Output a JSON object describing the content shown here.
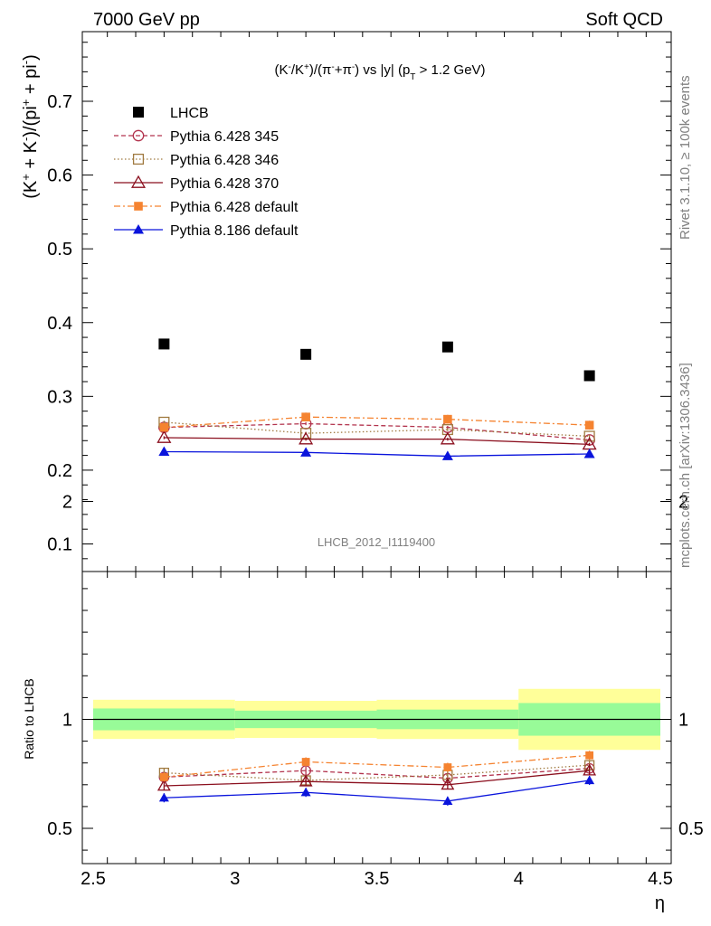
{
  "header": {
    "left": "7000 GeV pp",
    "right": "Soft QCD"
  },
  "side_labels": {
    "rivet": "Rivet 3.1.10, ≥ 100k events",
    "mcplots": "mcplots.cern.ch [arXiv:1306.3436]"
  },
  "watermark": "LHCB_2012_I1119400",
  "chart_data": [
    {
      "type": "scatter",
      "title": "(K⁻/K⁺)/(π⁻+π⁻) vs |y| (p_T > 1.2 GeV)",
      "ylabel": "(K⁺ + K⁻)/(pi⁺ + pi⁻)",
      "xlabel": "η",
      "xlim": [
        2.5,
        4.5
      ],
      "ylim": [
        0.05,
        0.8
      ],
      "legend_position": "top-left",
      "x_ticks": [
        "2.5",
        "3",
        "3.5",
        "4",
        "4.5"
      ],
      "y_ticks": [
        "0.1",
        "0.2",
        "0.3",
        "0.4",
        "0.5",
        "0.6",
        "0.7"
      ],
      "x": [
        2.75,
        3.25,
        3.75,
        4.25
      ],
      "series": [
        {
          "name": "LHCB",
          "color": "#000000",
          "marker": "filled-square",
          "line": "none",
          "values": [
            0.371,
            0.357,
            0.367,
            0.328
          ],
          "errors": [
            0.003,
            0.003,
            0.003,
            0.003
          ]
        },
        {
          "name": "Pythia 6.428 345",
          "color": "#b2334d",
          "marker": "open-circle",
          "line": "dashed",
          "values": [
            0.258,
            0.263,
            0.258,
            0.241
          ],
          "errors": [
            0.002,
            0.002,
            0.002,
            0.002
          ]
        },
        {
          "name": "Pythia 6.428 346",
          "color": "#a07a40",
          "marker": "open-square",
          "line": "dotted",
          "values": [
            0.265,
            0.25,
            0.255,
            0.246
          ],
          "errors": [
            0.002,
            0.002,
            0.002,
            0.002
          ]
        },
        {
          "name": "Pythia 6.428 370",
          "color": "#8b0f1e",
          "marker": "open-triangle",
          "line": "solid",
          "values": [
            0.244,
            0.242,
            0.242,
            0.235
          ],
          "errors": [
            0.002,
            0.002,
            0.002,
            0.002
          ]
        },
        {
          "name": "Pythia 6.428 default",
          "color": "#f58330",
          "marker": "filled-square-small",
          "line": "dashdot",
          "values": [
            0.258,
            0.272,
            0.269,
            0.261
          ],
          "errors": [
            0.005,
            0.006,
            0.006,
            0.006
          ]
        },
        {
          "name": "Pythia 8.186 default",
          "color": "#0a14dc",
          "marker": "filled-triangle",
          "line": "solid",
          "values": [
            0.225,
            0.224,
            0.219,
            0.222
          ],
          "errors": [
            0.002,
            0.002,
            0.002,
            0.002
          ]
        }
      ]
    },
    {
      "type": "scatter",
      "ylabel": "Ratio to LHCB",
      "xlabel": "η",
      "xlim": [
        2.5,
        4.5
      ],
      "ylim": [
        0.35,
        2.35
      ],
      "y_ticks": [
        "0.5",
        "1",
        "2"
      ],
      "x": [
        2.75,
        3.25,
        3.75,
        4.25
      ],
      "reference_line": 1,
      "uncertainty_bands": {
        "x_edges": [
          2.5,
          3.0,
          3.5,
          4.0,
          4.5
        ],
        "inner_colors": "#98fb98",
        "outer_colors": "#ffff99",
        "inner_half_widths": [
          0.05,
          0.04,
          0.045,
          0.075
        ],
        "outer_half_widths": [
          0.09,
          0.085,
          0.09,
          0.14
        ]
      },
      "series": [
        {
          "name": "Pythia 6.428 345",
          "values": [
            0.735,
            0.765,
            0.73,
            0.775
          ]
        },
        {
          "name": "Pythia 6.428 346",
          "values": [
            0.755,
            0.72,
            0.745,
            0.79
          ]
        },
        {
          "name": "Pythia 6.428 370",
          "values": [
            0.695,
            0.715,
            0.7,
            0.765
          ]
        },
        {
          "name": "Pythia 6.428 default",
          "values": [
            0.735,
            0.805,
            0.78,
            0.835
          ]
        },
        {
          "name": "Pythia 8.186 default",
          "values": [
            0.64,
            0.665,
            0.625,
            0.72
          ]
        }
      ]
    }
  ]
}
